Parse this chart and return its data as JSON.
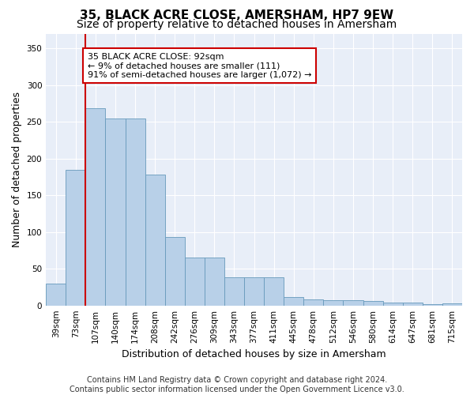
{
  "title": "35, BLACK ACRE CLOSE, AMERSHAM, HP7 9EW",
  "subtitle": "Size of property relative to detached houses in Amersham",
  "xlabel": "Distribution of detached houses by size in Amersham",
  "ylabel": "Number of detached properties",
  "categories": [
    "39sqm",
    "73sqm",
    "107sqm",
    "140sqm",
    "174sqm",
    "208sqm",
    "242sqm",
    "276sqm",
    "309sqm",
    "343sqm",
    "377sqm",
    "411sqm",
    "445sqm",
    "478sqm",
    "512sqm",
    "546sqm",
    "580sqm",
    "614sqm",
    "647sqm",
    "681sqm",
    "715sqm"
  ],
  "values": [
    30,
    185,
    268,
    254,
    254,
    178,
    93,
    65,
    65,
    38,
    38,
    38,
    12,
    8,
    7,
    7,
    6,
    4,
    4,
    2,
    3
  ],
  "bar_color": "#b8d0e8",
  "bar_edge_color": "#6699bb",
  "bar_edge_width": 0.6,
  "vline_x": 1.5,
  "vline_color": "#cc0000",
  "annotation_text": "35 BLACK ACRE CLOSE: 92sqm\n← 9% of detached houses are smaller (111)\n91% of semi-detached houses are larger (1,072) →",
  "annotation_box_color": "#ffffff",
  "annotation_box_edge": "#cc0000",
  "ylim": [
    0,
    370
  ],
  "yticks": [
    0,
    50,
    100,
    150,
    200,
    250,
    300,
    350
  ],
  "background_color": "#e8eef8",
  "grid_color": "#ffffff",
  "footer_text": "Contains HM Land Registry data © Crown copyright and database right 2024.\nContains public sector information licensed under the Open Government Licence v3.0.",
  "title_fontsize": 11,
  "subtitle_fontsize": 10,
  "tick_fontsize": 7.5,
  "label_fontsize": 9,
  "footer_fontsize": 7,
  "annotation_fontsize": 8
}
